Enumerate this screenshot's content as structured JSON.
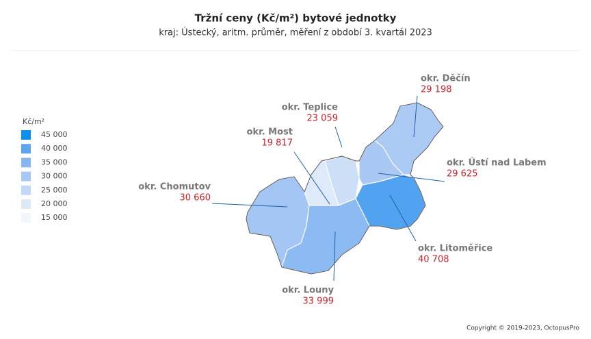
{
  "title": "Tržní ceny  (Kč/m²) bytové jednotky",
  "subtitle": "kraj: Ústecký, aritm. průměr, měření z období 3. kvartál 2023",
  "legend": {
    "unit": "Kč/m²",
    "stops": [
      {
        "value": 45000,
        "label": "45 000",
        "color": "#0b8ff0"
      },
      {
        "value": 40000,
        "label": "40 000",
        "color": "#5da5f0"
      },
      {
        "value": 35000,
        "label": "35 000",
        "color": "#85b6f2"
      },
      {
        "value": 30000,
        "label": "30 000",
        "color": "#a7c8f4"
      },
      {
        "value": 25000,
        "label": "25 000",
        "color": "#c3d8f6"
      },
      {
        "value": 20000,
        "label": "20 000",
        "color": "#dde8f9"
      },
      {
        "value": 15000,
        "label": "15 000",
        "color": "#f1f6fd"
      }
    ]
  },
  "districts": [
    {
      "name": "okr. Děčín",
      "value": 29198,
      "value_label": "29 198"
    },
    {
      "name": "okr. Teplice",
      "value": 23059,
      "value_label": "23 059"
    },
    {
      "name": "okr. Most",
      "value": 19817,
      "value_label": "19 817"
    },
    {
      "name": "okr. Ústí nad Labem",
      "value": 29625,
      "value_label": "29 625"
    },
    {
      "name": "okr. Chomutov",
      "value": 30660,
      "value_label": "30 660"
    },
    {
      "name": "okr. Litoměřice",
      "value": 40708,
      "value_label": "40 708"
    },
    {
      "name": "okr. Louny",
      "value": 33999,
      "value_label": "33 999"
    }
  ],
  "copyright": "Copyright © 2019-2023, OctopusPro"
}
